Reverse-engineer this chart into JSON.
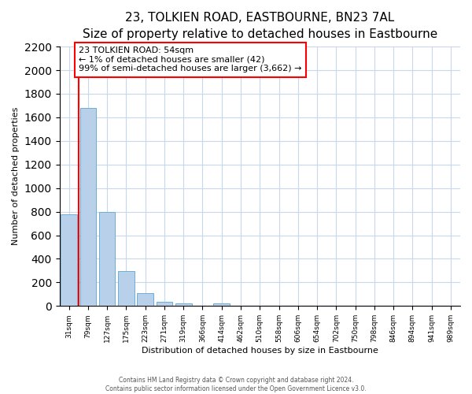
{
  "title": "23, TOLKIEN ROAD, EASTBOURNE, BN23 7AL",
  "subtitle": "Size of property relative to detached houses in Eastbourne",
  "xlabel": "Distribution of detached houses by size in Eastbourne",
  "ylabel": "Number of detached properties",
  "categories": [
    "31sqm",
    "79sqm",
    "127sqm",
    "175sqm",
    "223sqm",
    "271sqm",
    "319sqm",
    "366sqm",
    "414sqm",
    "462sqm",
    "510sqm",
    "558sqm",
    "606sqm",
    "654sqm",
    "702sqm",
    "750sqm",
    "798sqm",
    "846sqm",
    "894sqm",
    "941sqm",
    "989sqm"
  ],
  "values": [
    775,
    1680,
    795,
    295,
    110,
    38,
    22,
    0,
    22,
    0,
    0,
    0,
    0,
    0,
    0,
    0,
    0,
    0,
    0,
    0,
    0
  ],
  "bar_color": "#b8d0ea",
  "bar_edge_color": "#6baed6",
  "background_color": "#ffffff",
  "grid_color": "#c8d8ec",
  "ylim": [
    0,
    2200
  ],
  "yticks": [
    0,
    200,
    400,
    600,
    800,
    1000,
    1200,
    1400,
    1600,
    1800,
    2000,
    2200
  ],
  "annotation_line1": "23 TOLKIEN ROAD: 54sqm",
  "annotation_line2": "← 1% of detached houses are smaller (42)",
  "annotation_line3": "99% of semi-detached houses are larger (3,662) →",
  "red_line_bar_index": 0,
  "footer_line1": "Contains HM Land Registry data © Crown copyright and database right 2024.",
  "footer_line2": "Contains public sector information licensed under the Open Government Licence v3.0.",
  "title_fontsize": 11,
  "subtitle_fontsize": 9,
  "ylabel_fontsize": 8,
  "xlabel_fontsize": 8,
  "tick_fontsize": 6.5,
  "annot_fontsize": 8
}
